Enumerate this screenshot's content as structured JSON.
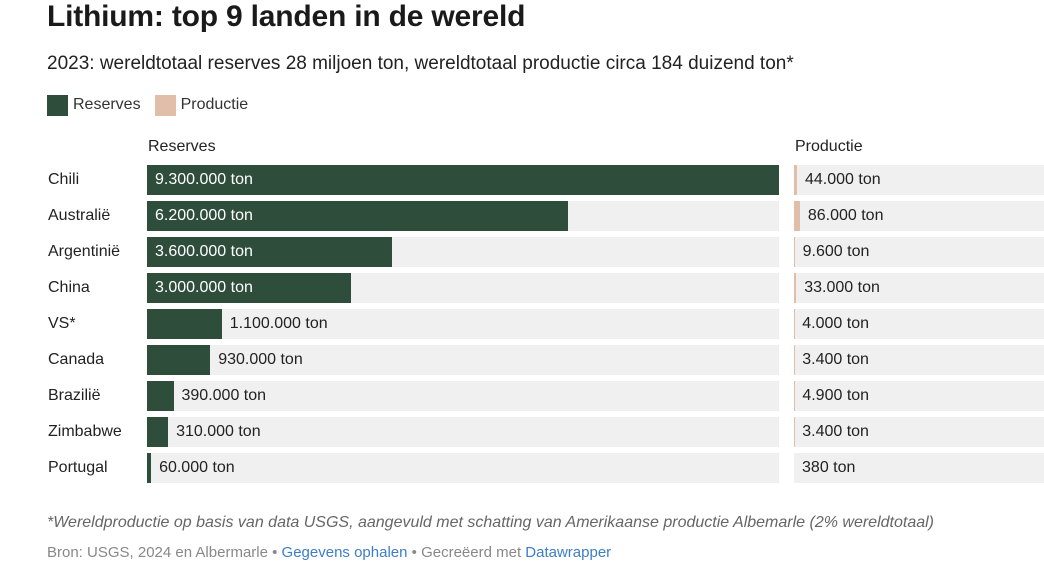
{
  "title": "Lithium: top 9 landen in de wereld",
  "subtitle": "2023: wereldtotaal reserves 28 miljoen ton, wereldtotaal productie circa 184 duizend ton*",
  "legend": {
    "reserves": "Reserves",
    "productie": "Productie"
  },
  "colors": {
    "reserves": "#2e4e3b",
    "productie": "#e1bea8",
    "track": "#f0f0f0",
    "link": "#3c7fc4"
  },
  "chart_data": {
    "type": "bar",
    "title": "Lithium: top 9 landen in de wereld",
    "column_headers": [
      "Reserves",
      "Productie"
    ],
    "categories": [
      "Chili",
      "Australië",
      "Argentinië",
      "China",
      "VS*",
      "Canada",
      "Brazilië",
      "Zimbabwe",
      "Portugal"
    ],
    "series": [
      {
        "name": "Reserves",
        "values": [
          9300000,
          6200000,
          3600000,
          3000000,
          1100000,
          930000,
          390000,
          310000,
          60000
        ],
        "labels": [
          "9.300.000 ton",
          "6.200.000 ton",
          "3.600.000 ton",
          "3.000.000 ton",
          "1.100.000 ton",
          "930.000 ton",
          "390.000 ton",
          "310.000 ton",
          "60.000 ton"
        ],
        "domain": [
          0,
          9300000
        ]
      },
      {
        "name": "Productie",
        "values": [
          44000,
          86000,
          9600,
          33000,
          4000,
          3400,
          4900,
          3400,
          380
        ],
        "labels": [
          "44.000 ton",
          "86.000 ton",
          "9.600 ton",
          "33.000 ton",
          "4.000 ton",
          "3.400 ton",
          "4.900 ton",
          "3.400 ton",
          "380 ton"
        ],
        "domain": [
          0,
          9300000
        ]
      }
    ]
  },
  "footnote": "*Wereldproductie op basis van data USGS, aangevuld met schatting van Amerikaanse productie Albemarle (2% wereldtotaal)",
  "source": {
    "prefix": "Bron: USGS, 2024 en Albermarle • ",
    "link1": "Gegevens ophalen",
    "middle": " • Gecreëerd met ",
    "link2": "Datawrapper"
  }
}
